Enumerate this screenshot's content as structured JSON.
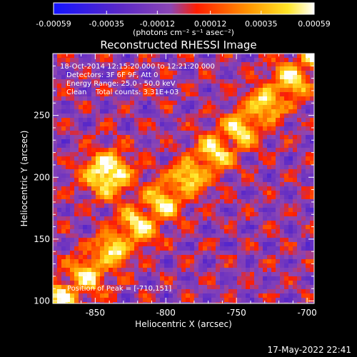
{
  "colors": {
    "background": "#000000",
    "text": "#ffffff",
    "colorbar_stops": [
      "#1414ff",
      "#5a28c8",
      "#8c46b4",
      "#ff1e00",
      "#ff9600",
      "#ffe628",
      "#ffffff"
    ]
  },
  "chart_data": {
    "type": "heatmap",
    "title": "Reconstructed RHESSI Image",
    "xlabel": "Heliocentric X (arcsec)",
    "ylabel": "Heliocentric Y (arcsec)",
    "xlim": [
      -880,
      -695
    ],
    "ylim": [
      98,
      300
    ],
    "x_ticks": [
      -850,
      -800,
      -750,
      -700
    ],
    "x_tick_labels": [
      "-850",
      "-800",
      "-750",
      "-700"
    ],
    "y_ticks": [
      100,
      150,
      200,
      250
    ],
    "y_tick_labels": [
      "100",
      "150",
      "200",
      "250"
    ],
    "colorbar": {
      "min": -0.00059,
      "max": 0.00059,
      "ticks": [
        -0.00059,
        -0.00035,
        -0.00012,
        0.00012,
        0.00035,
        0.00059
      ],
      "tick_labels": [
        "-0.00059",
        "-0.00035",
        "-0.00012",
        "0.00012",
        "0.00035",
        "0.00059"
      ],
      "units_label": "(photons cm⁻² s⁻¹ asec⁻²)"
    },
    "annotations": [
      "18-Oct-2014 12:15:20.000 to 12:21:20.000",
      "Detectors: 3F 6F 9F, Att 0",
      "Energy Range: 25.0 - 50.0 keV",
      "Clean    Total counts: 3.31E+03"
    ],
    "peak_label": "Position of Peak = [-710,151]",
    "grid": false
  },
  "footer": {
    "date": "17-May-2022 22:41"
  }
}
